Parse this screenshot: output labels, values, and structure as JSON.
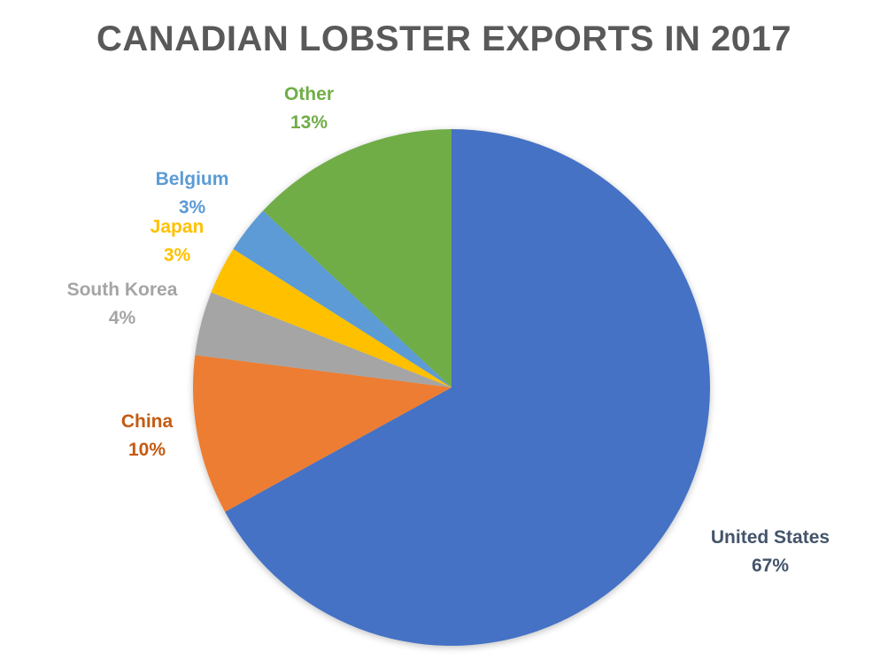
{
  "chart_data": {
    "type": "pie",
    "title": "CANADIAN LOBSTER EXPORTS IN 2017",
    "categories": [
      "United States",
      "China",
      "South Korea",
      "Japan",
      "Belgium",
      "Other"
    ],
    "values": [
      67,
      10,
      4,
      3,
      3,
      13
    ],
    "unit": "%",
    "colors": [
      "#4472C4",
      "#ED7D31",
      "#A5A5A5",
      "#FFC000",
      "#5B9BD5",
      "#70AD47"
    ],
    "start_angle": "12 o'clock",
    "direction": "clockwise",
    "legend": "none (data labels outside slices)"
  },
  "labels": [
    {
      "name": "United States",
      "pct": "67%",
      "color": "#44546A"
    },
    {
      "name": "China",
      "pct": "10%",
      "color": "#C55A11"
    },
    {
      "name": "South Korea",
      "pct": "4%",
      "color": "#A5A5A5"
    },
    {
      "name": "Japan",
      "pct": "3%",
      "color": "#FFC000"
    },
    {
      "name": "Belgium",
      "pct": "3%",
      "color": "#5B9BD5"
    },
    {
      "name": "Other",
      "pct": "13%",
      "color": "#70AD47"
    }
  ]
}
